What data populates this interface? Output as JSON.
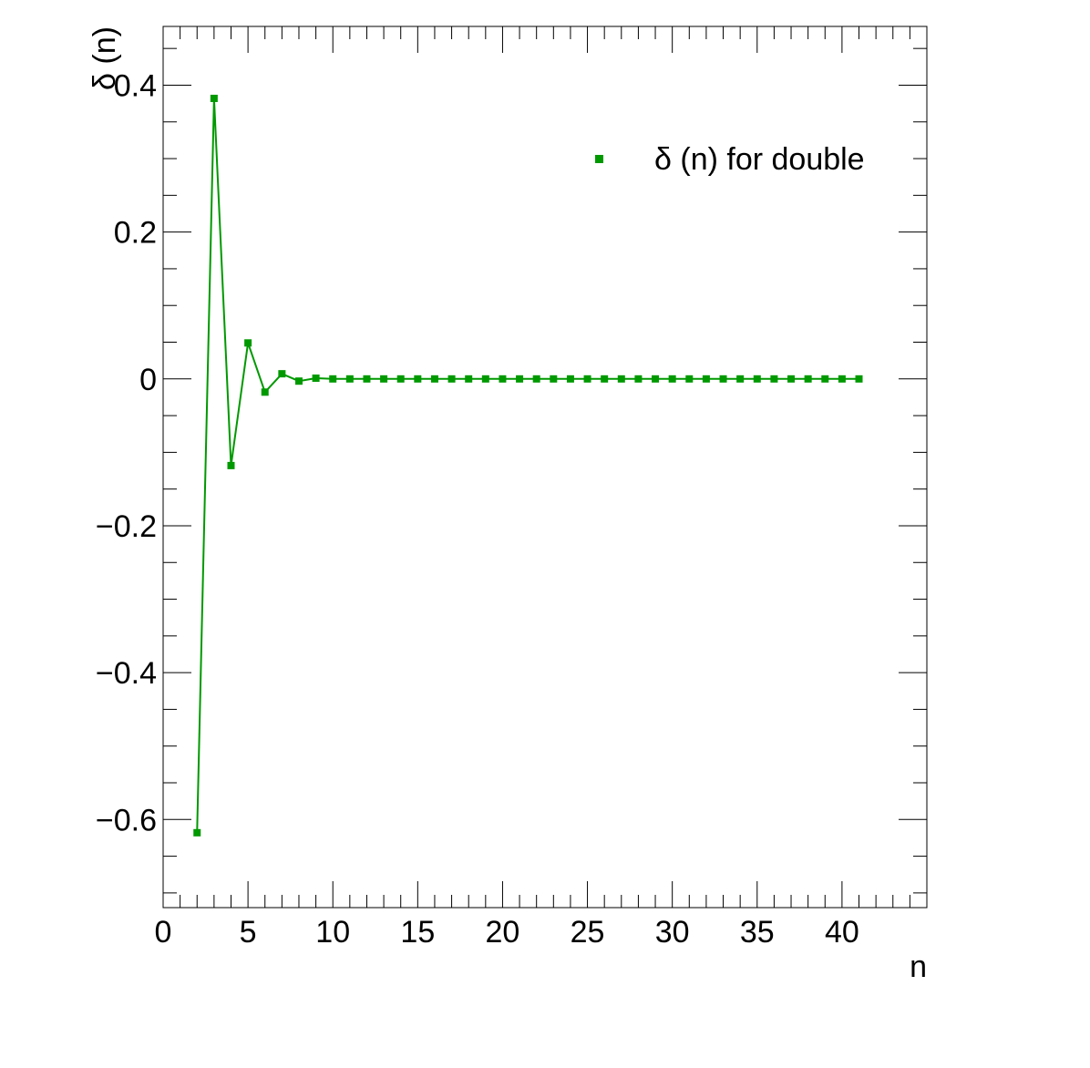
{
  "chart_data": {
    "type": "line",
    "title": "",
    "xlabel": "n",
    "ylabel": "δ (n)",
    "xlim": [
      0,
      45
    ],
    "ylim": [
      -0.72,
      0.48
    ],
    "x_ticks": [
      0,
      5,
      10,
      15,
      20,
      25,
      30,
      35,
      40
    ],
    "x_tick_labels": [
      "0",
      "5",
      "10",
      "15",
      "20",
      "25",
      "30",
      "35",
      "40"
    ],
    "y_ticks": [
      -0.6,
      -0.4,
      -0.2,
      0,
      0.2,
      0.4
    ],
    "y_tick_labels": [
      "−0.6",
      "−0.4",
      "−0.2",
      "0",
      "0.2",
      "0.4"
    ],
    "grid": false,
    "legend_position": "top-right",
    "marker": "square",
    "series": [
      {
        "name": "δ (n) for double",
        "color": "#009900",
        "x": [
          2,
          3,
          4,
          5,
          6,
          7,
          8,
          9,
          10,
          11,
          12,
          13,
          14,
          15,
          16,
          17,
          18,
          19,
          20,
          21,
          22,
          23,
          24,
          25,
          26,
          27,
          28,
          29,
          30,
          31,
          32,
          33,
          34,
          35,
          36,
          37,
          38,
          39,
          40,
          41
        ],
        "y": [
          -0.618,
          0.382,
          -0.118,
          0.049,
          -0.018,
          0.007,
          -0.003,
          0.001,
          0,
          0,
          0,
          0,
          0,
          0,
          0,
          0,
          0,
          0,
          0,
          0,
          0,
          0,
          0,
          0,
          0,
          0,
          0,
          0,
          0,
          0,
          0,
          0,
          0,
          0,
          0,
          0,
          0,
          0,
          0,
          0
        ]
      }
    ]
  }
}
